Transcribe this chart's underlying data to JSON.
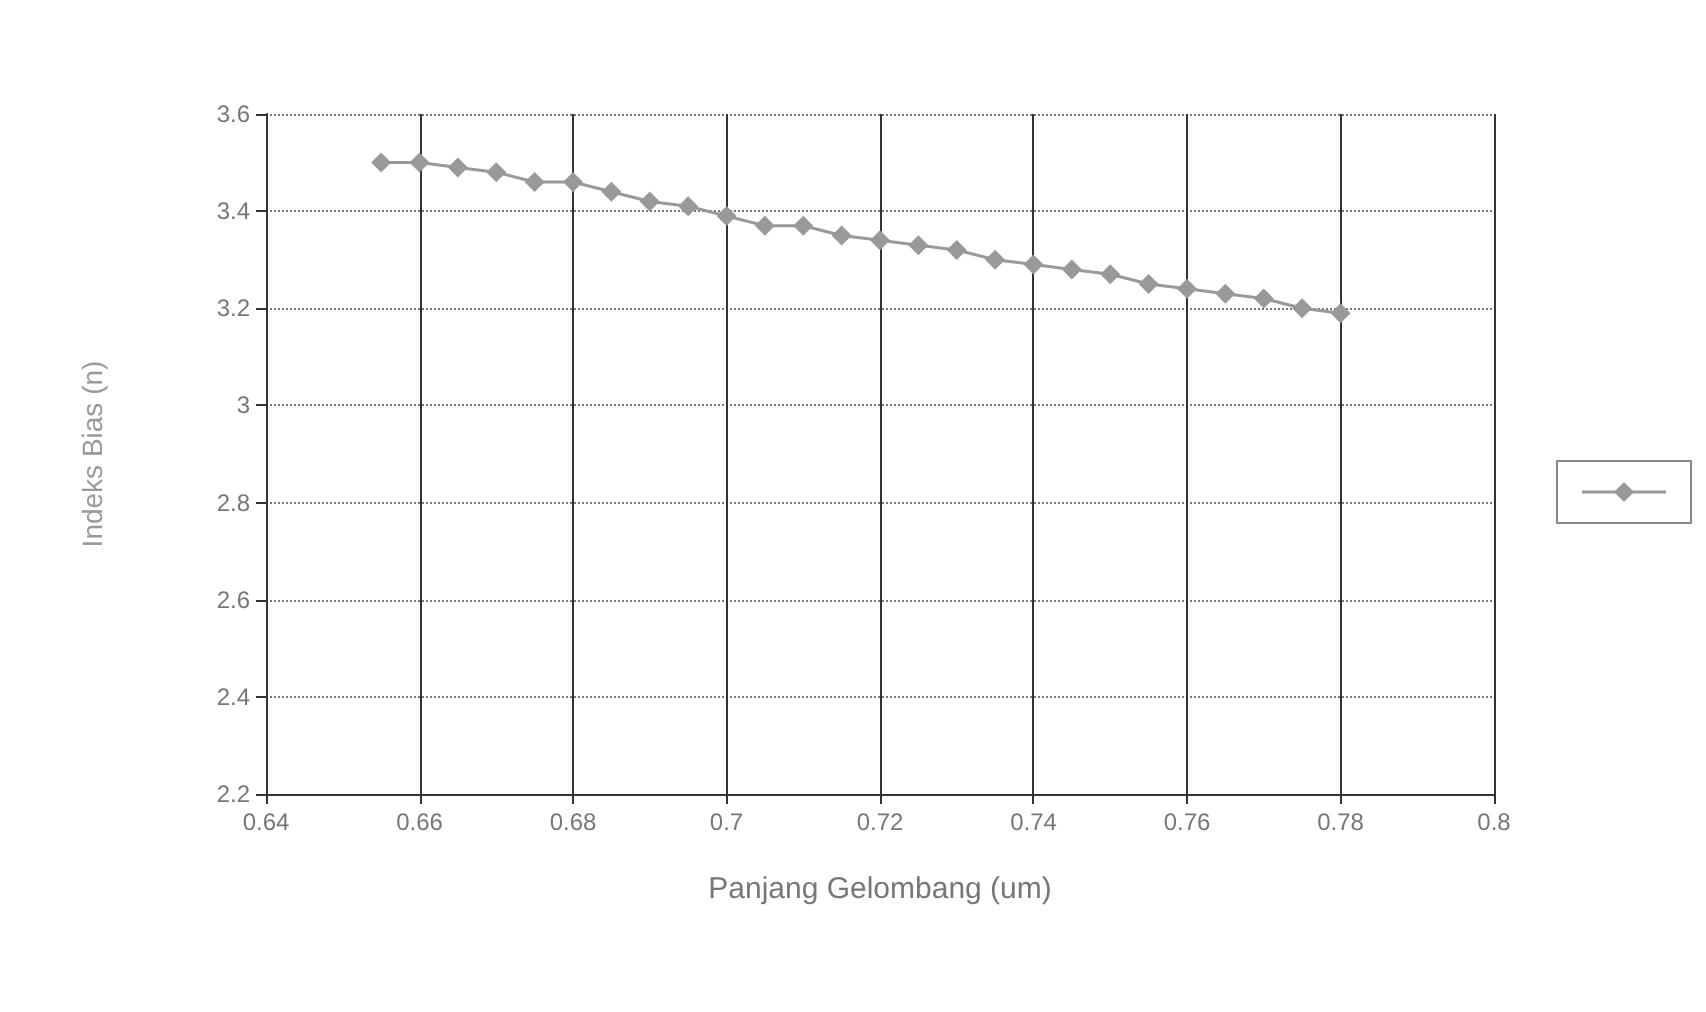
{
  "chart_data": {
    "type": "line",
    "xlabel": "Panjang Gelombang (um)",
    "ylabel": "Indeks Bias (n)",
    "x": [
      0.655,
      0.66,
      0.665,
      0.67,
      0.675,
      0.68,
      0.685,
      0.69,
      0.695,
      0.7,
      0.705,
      0.71,
      0.715,
      0.72,
      0.725,
      0.73,
      0.735,
      0.74,
      0.745,
      0.75,
      0.755,
      0.76,
      0.765,
      0.77,
      0.775,
      0.78
    ],
    "series": [
      {
        "color": "#999999",
        "values": [
          3.5,
          3.5,
          3.49,
          3.48,
          3.46,
          3.46,
          3.44,
          3.42,
          3.41,
          3.39,
          3.37,
          3.37,
          3.35,
          3.34,
          3.33,
          3.32,
          3.3,
          3.29,
          3.28,
          3.27,
          3.25,
          3.24,
          3.23,
          3.22,
          3.2,
          3.19
        ]
      }
    ],
    "xlim": [
      0.64,
      0.8
    ],
    "xticks": [
      0.64,
      0.66,
      0.68,
      0.7,
      0.72,
      0.74,
      0.76,
      0.78,
      0.8
    ],
    "ylim": [
      2.2,
      3.6
    ],
    "yticks": [
      2.2,
      2.4,
      2.6,
      2.8,
      3,
      3.2,
      3.4,
      3.6
    ],
    "grid": true,
    "marker": "diamond",
    "line_style": "solid"
  }
}
